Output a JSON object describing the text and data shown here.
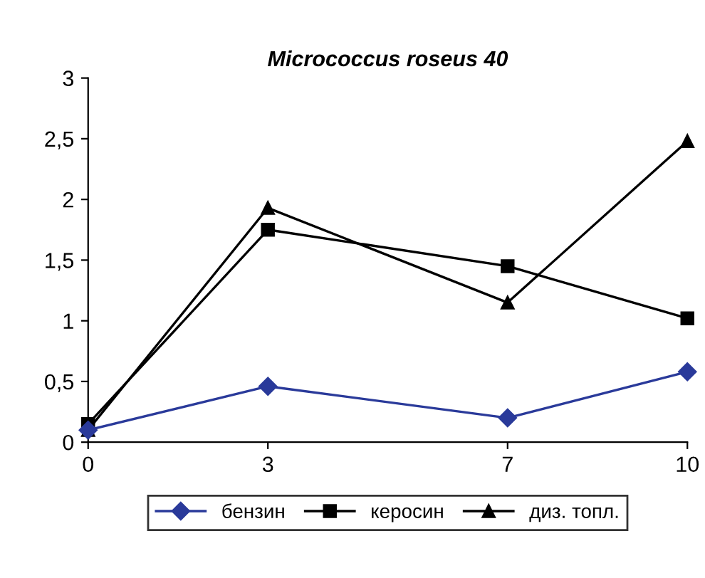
{
  "chart_data": {
    "type": "line",
    "title": "Micrococcus roseus 40",
    "x": [
      0,
      3,
      7,
      10
    ],
    "series": [
      {
        "name": "бензин",
        "color": "#2a3a9a",
        "marker": "diamond",
        "values": [
          0.1,
          0.46,
          0.2,
          0.58
        ]
      },
      {
        "name": "керосин",
        "color": "#000000",
        "marker": "square",
        "values": [
          0.15,
          1.75,
          1.45,
          1.02
        ]
      },
      {
        "name": "диз. топл.",
        "color": "#000000",
        "marker": "triangle",
        "values": [
          0.1,
          1.93,
          1.15,
          2.48
        ]
      }
    ],
    "xlim": [
      0,
      10
    ],
    "xticks": [
      0,
      3,
      7,
      10
    ],
    "ylim": [
      0,
      3
    ],
    "yticks": [
      0,
      {
        "value": 0.5,
        "label": "0,5"
      },
      1,
      {
        "value": 1.5,
        "label": "1,5"
      },
      2,
      {
        "value": 2.5,
        "label": "2,5"
      },
      3
    ],
    "grid": false,
    "legend": "bottom",
    "line_style": "solid"
  }
}
